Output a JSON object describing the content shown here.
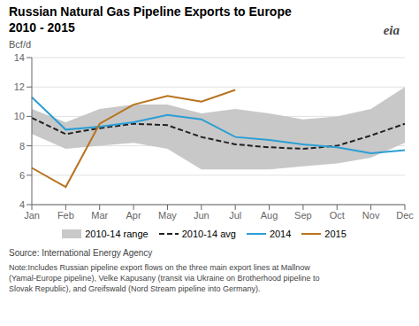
{
  "chart_data": {
    "type": "line",
    "title": "Russian Natural Gas Pipeline Exports to Europe",
    "subtitle": "2010 - 2015",
    "ylabel": "Bcf/d",
    "categories": [
      "Jan",
      "Feb",
      "Mar",
      "Apr",
      "May",
      "Jun",
      "Jul",
      "Aug",
      "Sep",
      "Oct",
      "Nov",
      "Dec"
    ],
    "series": [
      {
        "name": "2010-14 range",
        "type": "area",
        "color": "#c8c8c8",
        "lower": [
          8.8,
          7.8,
          8.0,
          8.2,
          7.8,
          6.4,
          6.4,
          6.4,
          6.6,
          6.8,
          7.2,
          8.2
        ],
        "upper": [
          10.5,
          9.6,
          10.5,
          10.8,
          10.8,
          10.2,
          10.5,
          10.2,
          9.8,
          10.0,
          10.5,
          12.0
        ]
      },
      {
        "name": "2010-14 avg",
        "type": "line",
        "color": "#222222",
        "line_style": "dashed",
        "values": [
          9.9,
          8.8,
          9.2,
          9.5,
          9.4,
          8.6,
          8.1,
          7.9,
          7.8,
          8.0,
          8.7,
          9.5
        ]
      },
      {
        "name": "2014",
        "type": "line",
        "color": "#2b9fd4",
        "line_style": "solid",
        "values": [
          11.3,
          9.1,
          9.3,
          9.6,
          10.1,
          9.8,
          8.6,
          8.4,
          8.1,
          7.9,
          7.5,
          7.7
        ]
      },
      {
        "name": "2015",
        "type": "line",
        "color": "#b8731e",
        "line_style": "solid",
        "values": [
          6.5,
          5.2,
          9.5,
          10.8,
          11.4,
          11.0,
          11.8,
          null,
          null,
          null,
          null,
          null
        ]
      }
    ],
    "ylim": [
      4,
      14
    ],
    "yticks": [
      4,
      6,
      8,
      10,
      12,
      14
    ],
    "grid": true,
    "legend": "bottom",
    "annotations": [
      "Source: International Energy Agency",
      "Note:Includes Russian pipeline export flows on the three main export lines at Mallnow\n(Yamal-Europe pipeline), Velke Kapusany (transit via Ukraine on Brotherhood pipeline to\nSlovak Republic), and Greifswald (Nord Stream pipeline into Germany).",
      "eia"
    ]
  }
}
